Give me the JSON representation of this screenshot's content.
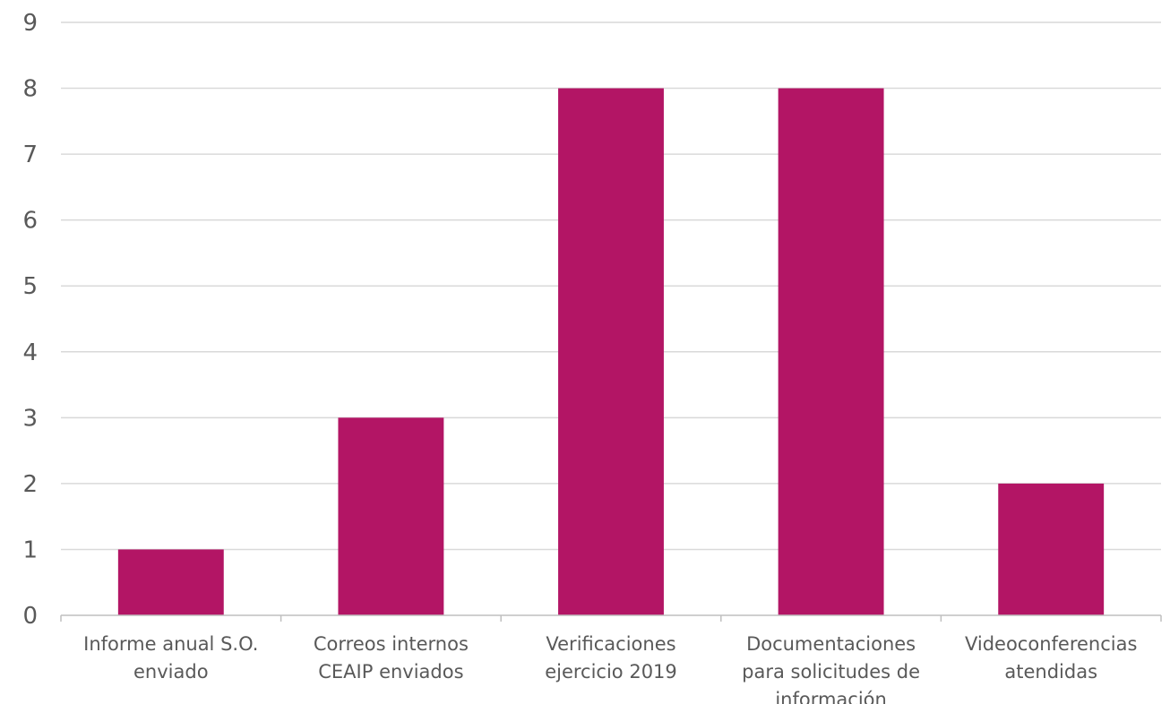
{
  "chart_data": {
    "type": "bar",
    "categories": [
      [
        "Informe anual S.O.",
        "enviado"
      ],
      [
        "Correos internos",
        "CEAIP enviados"
      ],
      [
        "Verificaciones",
        "ejercicio 2019"
      ],
      [
        "Documentaciones",
        "para solicitudes de",
        "información"
      ],
      [
        "Videoconferencias",
        "atendidas"
      ]
    ],
    "values": [
      1,
      3,
      8,
      8,
      2
    ],
    "ylim": [
      0,
      9
    ],
    "yticks": [
      0,
      1,
      2,
      3,
      4,
      5,
      6,
      7,
      8,
      9
    ],
    "grid": true,
    "legend": "none",
    "title": "",
    "xlabel": "",
    "ylabel": "",
    "colors": {
      "bar": "#b31565",
      "grid": "#d9d9d9",
      "axis": "#bfbfbf",
      "text": "#595959"
    }
  }
}
